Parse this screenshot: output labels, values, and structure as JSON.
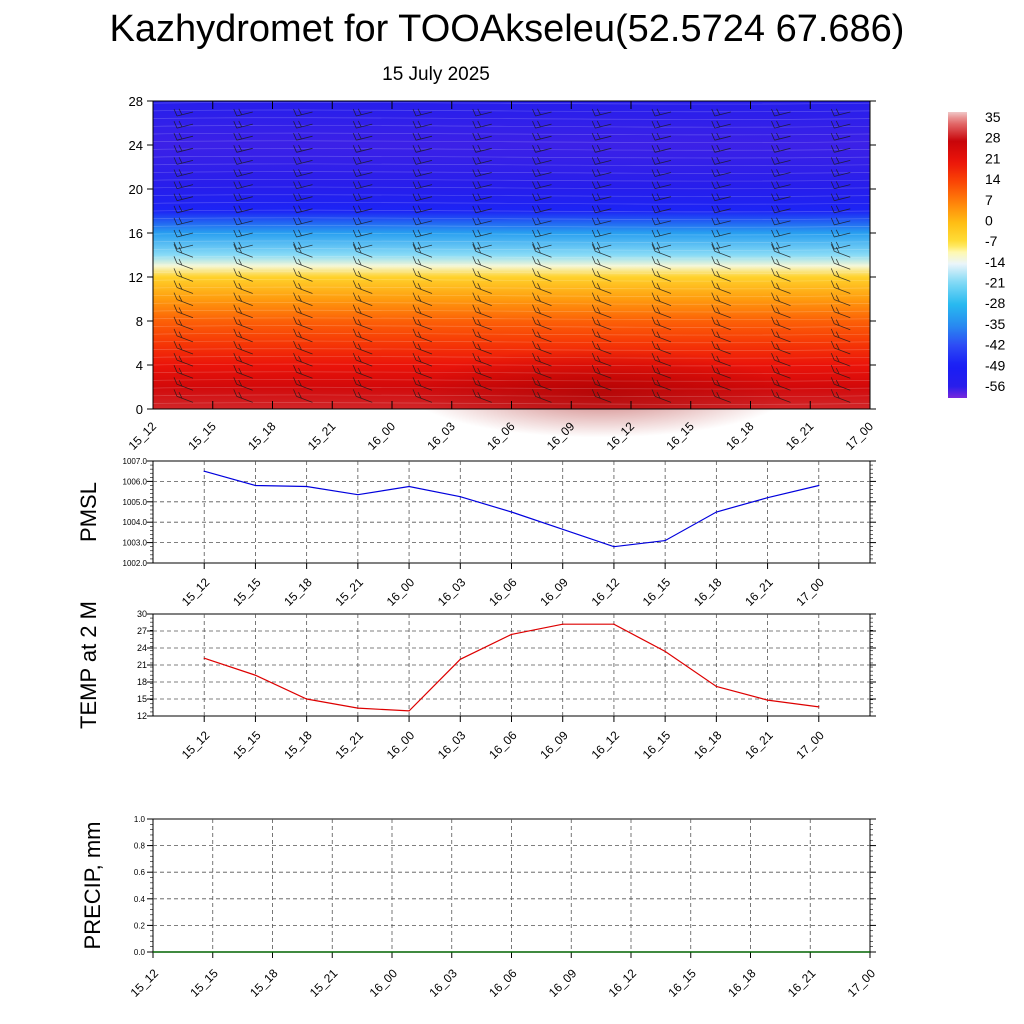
{
  "header": {
    "title": "Kazhydromet for TOOAkseleu(52.5724 67.686)",
    "subtitle": "15 July 2025"
  },
  "colors": {
    "pmsl_line": "#0000dd",
    "temp_line": "#dd0000",
    "precip_line": "#006400",
    "grid": "#555555"
  },
  "chart_data": [
    {
      "type": "heatmap",
      "title": "",
      "xlabel": "",
      "ylabel": "",
      "x_labels": [
        "15_12",
        "15_15",
        "15_18",
        "15_21",
        "16_00",
        "16_03",
        "16_06",
        "16_09",
        "16_12",
        "16_15",
        "16_18",
        "16_21",
        "17_00"
      ],
      "y_ticks": [
        0,
        4,
        8,
        12,
        16,
        20,
        24,
        28
      ],
      "ylim": [
        0,
        28
      ],
      "colorbar": {
        "labels": [
          "35",
          "28",
          "21",
          "14",
          "7",
          "0",
          "-7",
          "-14",
          "-21",
          "-28",
          "-35",
          "-42",
          "-49",
          "-56"
        ],
        "placement": "right"
      },
      "temperature_profile": [
        {
          "level": 0,
          "value": 30
        },
        {
          "level": 2,
          "value": 26
        },
        {
          "level": 4,
          "value": 21
        },
        {
          "level": 6,
          "value": 16
        },
        {
          "level": 8,
          "value": 11
        },
        {
          "level": 10,
          "value": 4
        },
        {
          "level": 12,
          "value": -4
        },
        {
          "level": 13,
          "value": -12
        },
        {
          "level": 14,
          "value": -20
        },
        {
          "level": 16,
          "value": -32
        },
        {
          "level": 18,
          "value": -48
        },
        {
          "level": 20,
          "value": -55
        },
        {
          "level": 24,
          "value": -57
        },
        {
          "level": 28,
          "value": -55
        }
      ],
      "wind_barbs": true
    },
    {
      "type": "line",
      "title": "",
      "xlabel": "",
      "ylabel": "PMSL",
      "categories": [
        "15_12",
        "15_15",
        "15_18",
        "15_21",
        "16_00",
        "16_03",
        "16_06",
        "16_09",
        "16_12",
        "16_15",
        "16_18",
        "16_21",
        "17_00"
      ],
      "y_ticks": [
        "1002.0",
        "1003.0",
        "1004.0",
        "1005.0",
        "1006.0",
        "1007.0"
      ],
      "ylim": [
        1002,
        1007
      ],
      "series": [
        {
          "values": [
            1006.5,
            1005.8,
            1005.75,
            1005.35,
            1005.75,
            1005.25,
            1004.5,
            1003.65,
            1002.8,
            1003.1,
            1004.5,
            1005.2,
            1005.8
          ]
        }
      ],
      "grid": true
    },
    {
      "type": "line",
      "title": "",
      "xlabel": "",
      "ylabel": "TEMP at 2 M",
      "categories": [
        "15_12",
        "15_15",
        "15_18",
        "15_21",
        "16_00",
        "16_03",
        "16_06",
        "16_09",
        "16_12",
        "16_15",
        "16_18",
        "16_21",
        "17_00"
      ],
      "y_ticks": [
        "12",
        "15",
        "18",
        "21",
        "24",
        "27",
        "30"
      ],
      "ylim": [
        12,
        30
      ],
      "series": [
        {
          "values": [
            22.2,
            19.2,
            15.0,
            13.4,
            12.9,
            22.0,
            26.4,
            28.2,
            28.2,
            23.4,
            17.2,
            14.8,
            13.6
          ]
        }
      ],
      "grid": true
    },
    {
      "type": "line",
      "title": "",
      "xlabel": "",
      "ylabel": "PRECIP, mm",
      "categories": [
        "15_12",
        "15_15",
        "15_18",
        "15_21",
        "16_00",
        "16_03",
        "16_06",
        "16_09",
        "16_12",
        "16_15",
        "16_18",
        "16_21",
        "17_00"
      ],
      "y_ticks": [
        "0.0",
        "0.2",
        "0.4",
        "0.6",
        "0.8",
        "1.0"
      ],
      "ylim": [
        0,
        1
      ],
      "series": [
        {
          "values": [
            0,
            0,
            0,
            0,
            0,
            0,
            0,
            0,
            0,
            0,
            0,
            0,
            0
          ]
        }
      ],
      "grid": true
    }
  ]
}
